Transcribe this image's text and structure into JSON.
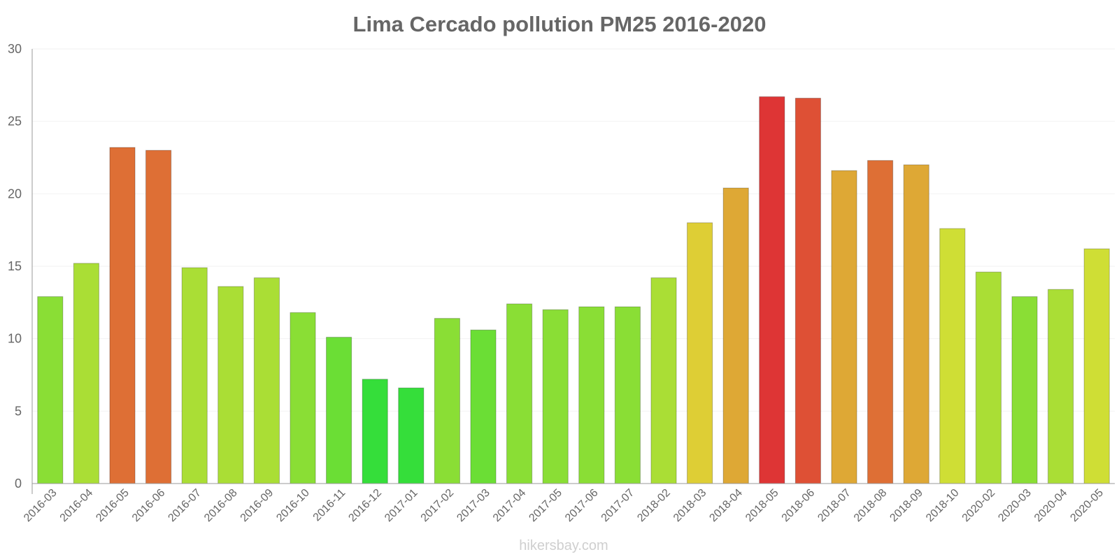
{
  "chart_data": {
    "type": "bar",
    "title": "Lima Cercado pollution PM25 2016-2020",
    "xlabel": "",
    "ylabel": "",
    "ylim": [
      0,
      30
    ],
    "yticks": [
      "0",
      "5",
      "10",
      "15",
      "20",
      "25",
      "30"
    ],
    "grid": true,
    "categories": [
      "2016-03",
      "2016-04",
      "2016-05",
      "2016-06",
      "2016-07",
      "2016-08",
      "2016-09",
      "2016-10",
      "2016-11",
      "2016-12",
      "2017-01",
      "2017-02",
      "2017-03",
      "2017-04",
      "2017-05",
      "2017-06",
      "2017-07",
      "2018-02",
      "2018-03",
      "2018-04",
      "2018-05",
      "2018-06",
      "2018-07",
      "2018-08",
      "2018-09",
      "2018-10",
      "2020-02",
      "2020-03",
      "2020-04",
      "2020-05"
    ],
    "values": [
      12.9,
      15.2,
      23.2,
      23.0,
      14.9,
      13.6,
      14.2,
      11.8,
      10.1,
      7.2,
      6.6,
      11.4,
      10.6,
      12.4,
      12.0,
      12.2,
      12.2,
      14.2,
      18.0,
      20.4,
      26.7,
      26.6,
      21.6,
      22.3,
      22.0,
      17.6,
      14.6,
      12.9,
      13.4,
      16.2
    ],
    "colors": [
      "#8ade35",
      "#aade35",
      "#de6f35",
      "#de6f35",
      "#aade35",
      "#aade35",
      "#aade35",
      "#8ade35",
      "#6bde35",
      "#35de3a",
      "#35de3a",
      "#8ade35",
      "#6bde35",
      "#8ade35",
      "#8ade35",
      "#8ade35",
      "#8ade35",
      "#aade35",
      "#dece35",
      "#dea835",
      "#de3535",
      "#de5035",
      "#dea835",
      "#de6f35",
      "#dea835",
      "#cfde35",
      "#aade35",
      "#8ade35",
      "#aade35",
      "#cfde35"
    ]
  },
  "watermark": "hikersbay.com"
}
